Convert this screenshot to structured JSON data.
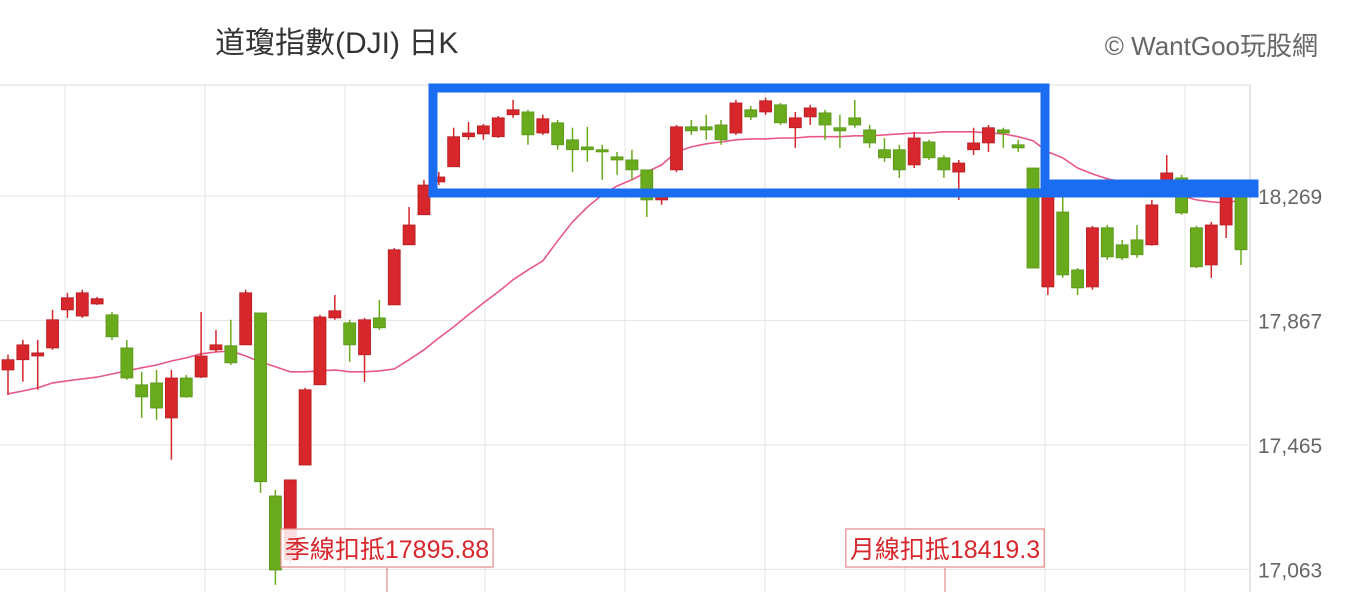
{
  "chart_data": {
    "type": "candlestick",
    "title": "道瓊指數(DJI) 日K",
    "watermark": "© WantGoo玩股網",
    "up_color": "#d7262c",
    "down_color": "#6aab1e",
    "grid": true,
    "ylim": [
      16990,
      18627
    ],
    "yticks": [
      {
        "value": 17063,
        "label": "17,063"
      },
      {
        "value": 17465,
        "label": "17,465"
      },
      {
        "value": 17867,
        "label": "17,867"
      },
      {
        "value": 18269,
        "label": "18,269"
      }
    ],
    "open": [
      17707,
      17740,
      17752,
      17778,
      17901,
      17881,
      17920,
      17885,
      17778,
      17659,
      17665,
      17552,
      17681,
      17684,
      17772,
      17785,
      17788,
      17891,
      17300,
      17094,
      17400,
      17659,
      17875,
      17859,
      17756,
      17875,
      17917,
      18111,
      18208,
      18314,
      18363,
      18460,
      18469,
      18460,
      18531,
      18540,
      18472,
      18505,
      18450,
      18427,
      18418,
      18395,
      18385,
      18353,
      18256,
      18353,
      18492,
      18492,
      18498,
      18472,
      18547,
      18540,
      18563,
      18489,
      18524,
      18537,
      18489,
      18521,
      18482,
      18418,
      18418,
      18369,
      18443,
      18392,
      18346,
      18418,
      18440,
      18482,
      18434,
      18359,
      17975,
      18217,
      18030,
      17975,
      18166,
      18111,
      18127,
      18111,
      18311,
      18327,
      18166,
      18046,
      18175,
      18282
    ],
    "high": [
      17756,
      17804,
      17804,
      17901,
      17956,
      17966,
      17943,
      17894,
      17804,
      17701,
      17707,
      17707,
      17691,
      17894,
      17836,
      17869,
      17966,
      17891,
      17320,
      17352,
      17649,
      17885,
      17949,
      17869,
      17875,
      17933,
      18101,
      18233,
      18321,
      18346,
      18489,
      18508,
      18501,
      18527,
      18579,
      18547,
      18531,
      18514,
      18489,
      18492,
      18434,
      18411,
      18418,
      18353,
      18288,
      18498,
      18514,
      18531,
      18514,
      18579,
      18560,
      18586,
      18569,
      18540,
      18563,
      18547,
      18531,
      18579,
      18498,
      18456,
      18434,
      18476,
      18450,
      18401,
      18385,
      18489,
      18498,
      18489,
      18450,
      18359,
      18321,
      18321,
      18036,
      18172,
      18175,
      18127,
      18175,
      18256,
      18401,
      18337,
      18172,
      18185,
      18304,
      18314
    ],
    "low": [
      17626,
      17669,
      17643,
      17772,
      17875,
      17875,
      17917,
      17804,
      17675,
      17552,
      17546,
      17417,
      17617,
      17681,
      17765,
      17723,
      17788,
      17310,
      17013,
      17078,
      17400,
      17659,
      17869,
      17733,
      17668,
      17836,
      17917,
      18111,
      18208,
      18304,
      18363,
      18450,
      18450,
      18456,
      18521,
      18434,
      18466,
      18418,
      18346,
      18379,
      18321,
      18337,
      18321,
      18201,
      18240,
      18346,
      18466,
      18450,
      18434,
      18466,
      18514,
      18531,
      18498,
      18424,
      18498,
      18450,
      18424,
      18489,
      18424,
      18379,
      18327,
      18359,
      18385,
      18327,
      18256,
      18401,
      18411,
      18424,
      18411,
      18036,
      17949,
      18004,
      17949,
      17966,
      18062,
      18062,
      18069,
      18108,
      18304,
      18208,
      18036,
      18004,
      18133,
      18046
    ],
    "close": [
      17740,
      17788,
      17762,
      17869,
      17940,
      17956,
      17937,
      17814,
      17681,
      17620,
      17584,
      17681,
      17620,
      17752,
      17788,
      17730,
      17956,
      17346,
      17061,
      17352,
      17643,
      17878,
      17898,
      17788,
      17869,
      17843,
      18095,
      18175,
      18304,
      18330,
      18460,
      18472,
      18495,
      18521,
      18547,
      18466,
      18518,
      18434,
      18418,
      18418,
      18411,
      18385,
      18353,
      18256,
      18269,
      18492,
      18479,
      18482,
      18450,
      18569,
      18524,
      18576,
      18505,
      18521,
      18553,
      18498,
      18479,
      18498,
      18440,
      18392,
      18353,
      18456,
      18392,
      18353,
      18375,
      18440,
      18489,
      18472,
      18424,
      18036,
      18311,
      18014,
      17972,
      18166,
      18072,
      18069,
      18079,
      18240,
      18343,
      18214,
      18040,
      18175,
      18272,
      18095
    ],
    "ma": {
      "color": "#e9578a",
      "values": [
        17630,
        17639,
        17649,
        17665,
        17672,
        17678,
        17684,
        17694,
        17704,
        17714,
        17723,
        17736,
        17746,
        17759,
        17765,
        17768,
        17752,
        17733,
        17717,
        17701,
        17701,
        17704,
        17707,
        17701,
        17701,
        17704,
        17710,
        17740,
        17772,
        17810,
        17846,
        17885,
        17923,
        17959,
        17998,
        18030,
        18059,
        18124,
        18185,
        18233,
        18272,
        18301,
        18321,
        18346,
        18369,
        18411,
        18427,
        18437,
        18443,
        18450,
        18453,
        18453,
        18456,
        18456,
        18460,
        18460,
        18460,
        18463,
        18463,
        18466,
        18469,
        18472,
        18472,
        18476,
        18476,
        18476,
        18472,
        18469,
        18460,
        18447,
        18411,
        18392,
        18359,
        18340,
        18324,
        18314,
        18301,
        18291,
        18278,
        18269,
        18256,
        18250,
        18246,
        18256
      ]
    },
    "annotations": [
      {
        "text": "季線扣抵17895.88"
      },
      {
        "text": "月線扣抵18419.3"
      }
    ]
  }
}
